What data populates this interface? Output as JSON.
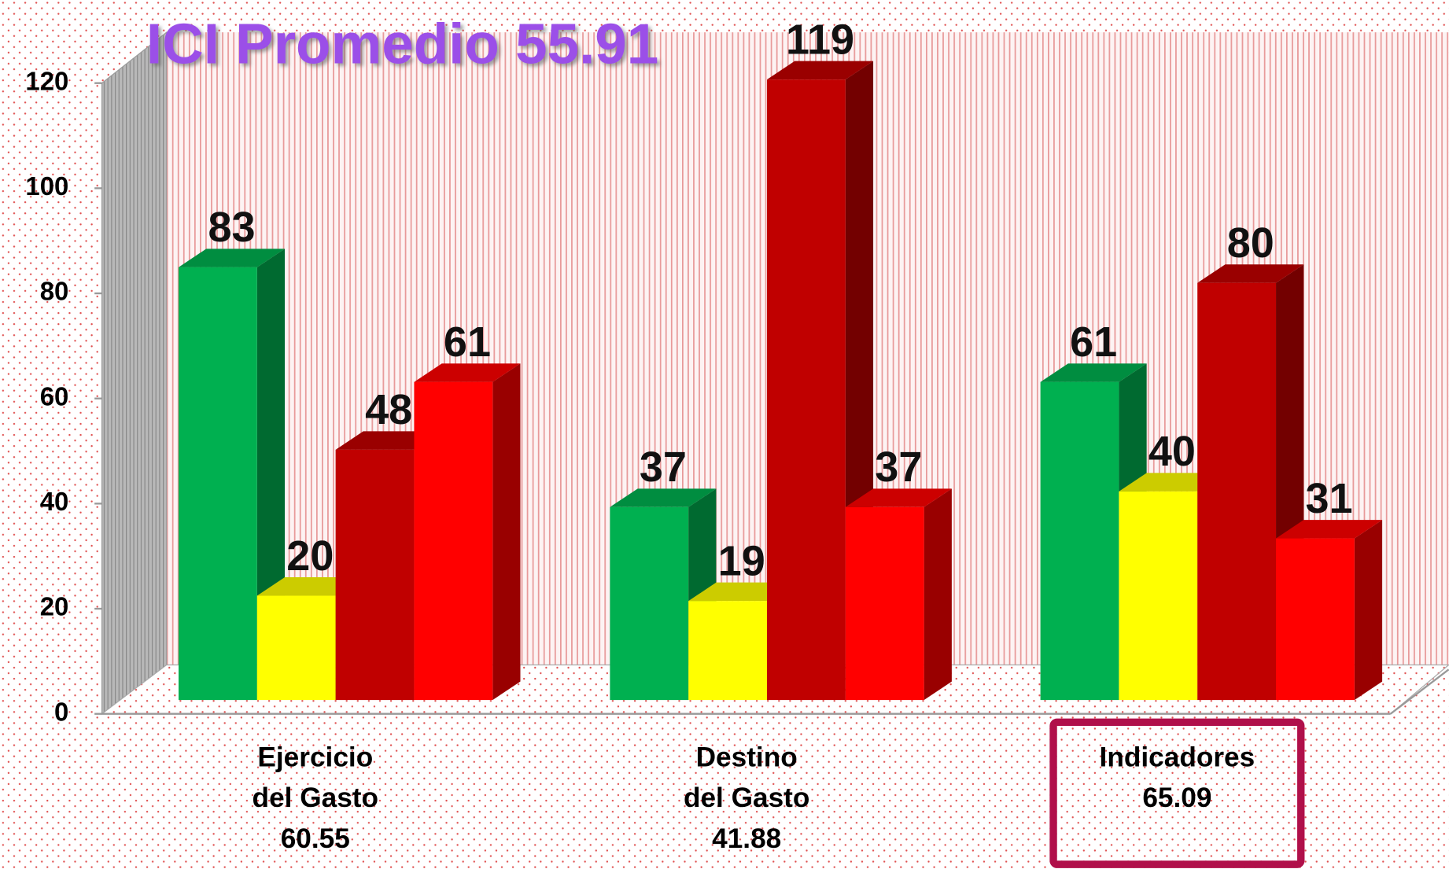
{
  "chart_data": {
    "type": "bar3d",
    "title": "ICI Promedio 55.91",
    "categories": [
      [
        "Ejercicio",
        "del Gasto",
        "60.55"
      ],
      [
        "Destino",
        "del Gasto",
        "41.88"
      ],
      [
        "Indicadores",
        "65.09"
      ]
    ],
    "series": [
      {
        "color": "#00b050",
        "values": [
          83,
          37,
          61
        ]
      },
      {
        "color": "#ffff00",
        "values": [
          20,
          19,
          40
        ]
      },
      {
        "color": "#c00000",
        "values": [
          48,
          119,
          80
        ]
      },
      {
        "color": "#ff0000",
        "values": [
          61,
          37,
          31
        ]
      }
    ],
    "ylim": [
      0,
      120
    ],
    "yticks": [
      0,
      20,
      40,
      60,
      80,
      100,
      120
    ]
  }
}
